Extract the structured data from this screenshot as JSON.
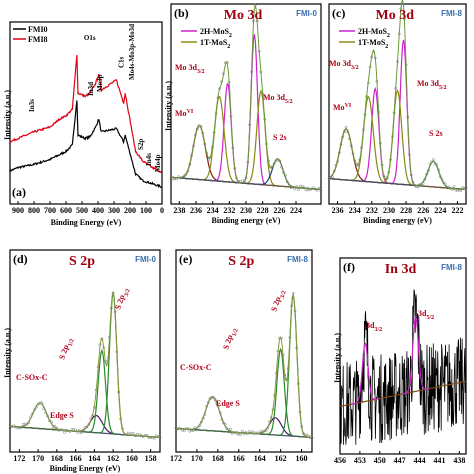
{
  "chart_data": [
    {
      "id": "a",
      "type": "line",
      "panel_label": "(a)",
      "xlabel": "Binding Energy (eV)",
      "ylabel": "Intensity (a.u.)",
      "xlim": [
        950,
        0
      ],
      "ticks": [
        "900",
        "800",
        "700",
        "600",
        "500",
        "400",
        "300",
        "200",
        "100",
        "0"
      ],
      "legend": [
        "FMI0",
        "FMI8"
      ],
      "series": [
        {
          "name": "FMI0",
          "color": "#000000",
          "points": [
            [
              950,
              0.18
            ],
            [
              900,
              0.2
            ],
            [
              800,
              0.22
            ],
            [
              700,
              0.25
            ],
            [
              640,
              0.28
            ],
            [
              600,
              0.3
            ],
            [
              560,
              0.34
            ],
            [
              532,
              0.62
            ],
            [
              525,
              0.4
            ],
            [
              480,
              0.38
            ],
            [
              450,
              0.39
            ],
            [
              415,
              0.45
            ],
            [
              395,
              0.5
            ],
            [
              380,
              0.42
            ],
            [
              285,
              0.44
            ],
            [
              240,
              0.36
            ],
            [
              230,
              0.4
            ],
            [
              165,
              0.16
            ],
            [
              120,
              0.12
            ],
            [
              60,
              0.1
            ],
            [
              0,
              0.08
            ]
          ]
        },
        {
          "name": "FMI8",
          "color": "#e00010",
          "points": [
            [
              950,
              0.36
            ],
            [
              900,
              0.38
            ],
            [
              800,
              0.42
            ],
            [
              700,
              0.45
            ],
            [
              640,
              0.5
            ],
            [
              600,
              0.52
            ],
            [
              560,
              0.56
            ],
            [
              532,
              0.9
            ],
            [
              525,
              0.66
            ],
            [
              480,
              0.64
            ],
            [
              450,
              0.66
            ],
            [
              415,
              0.72
            ],
            [
              395,
              0.78
            ],
            [
              380,
              0.68
            ],
            [
              285,
              0.74
            ],
            [
              240,
              0.6
            ],
            [
              230,
              0.66
            ],
            [
              165,
              0.3
            ],
            [
              120,
              0.24
            ],
            [
              60,
              0.2
            ],
            [
              0,
              0.17
            ]
          ]
        }
      ],
      "peaks": [
        {
          "label": "O1s",
          "x": 532
        },
        {
          "label": "In3d",
          "x": 445
        },
        {
          "label": "Mo3p",
          "x": 398
        },
        {
          "label": "In3s",
          "x": 828
        },
        {
          "label": "C1s",
          "x": 285
        },
        {
          "label": "Mo4s-Mo3p-Mo3d",
          "x": 232
        },
        {
          "label": "S2p",
          "x": 163
        },
        {
          "label": "In4s",
          "x": 120
        },
        {
          "label": "Mo4p",
          "x": 38
        }
      ]
    },
    {
      "id": "b",
      "type": "line",
      "panel_label": "(b)",
      "title": "Mo 3d",
      "tag": "FMI-0",
      "xlabel": "Binding energy (eV)",
      "ylabel": "Intensity (a.u.)",
      "xlim": [
        239,
        221
      ],
      "ticks": [
        "238",
        "236",
        "234",
        "232",
        "230",
        "228",
        "226",
        "224"
      ],
      "legend": [
        "2H-MoS2",
        "1T-MoS2"
      ],
      "annotations": [
        "Mo VI",
        "Mo 3d3/2",
        "Mo 3d5/2",
        "S 2s"
      ],
      "components": [
        {
          "name": "MoVI",
          "center": 235.6,
          "height": 0.32,
          "width": 1.0,
          "color": "#7a1a1a"
        },
        {
          "name": "2H-MoS2 3d3/2",
          "center": 232.2,
          "height": 0.58,
          "width": 0.6,
          "color": "#cc22cc"
        },
        {
          "name": "2H-MoS2 3d5/2",
          "center": 229.0,
          "height": 0.88,
          "width": 0.55,
          "color": "#cc22cc"
        },
        {
          "name": "1T-MoS2 3d3/2",
          "center": 233.2,
          "height": 0.5,
          "width": 0.8,
          "color": "#8a8a10"
        },
        {
          "name": "1T-MoS2 3d5/2",
          "center": 228.2,
          "height": 0.55,
          "width": 0.7,
          "color": "#8a8a10"
        },
        {
          "name": "S 2s",
          "center": 226.2,
          "height": 0.16,
          "width": 0.9,
          "color": "#1a3a7a"
        }
      ]
    },
    {
      "id": "c",
      "type": "line",
      "panel_label": "(c)",
      "title": "Mo 3d",
      "tag": "FMI-8",
      "xlabel": "Binding energy (eV)",
      "ylabel": "",
      "xlim": [
        237,
        221
      ],
      "ticks": [
        "236",
        "234",
        "232",
        "230",
        "228",
        "226",
        "224",
        "222"
      ],
      "legend": [
        "2H-MoS2",
        "1T-MoS2"
      ],
      "annotations": [
        "Mo VI",
        "Mo 3d3/2",
        "Mo 3d5/2",
        "S 2s"
      ],
      "components": [
        {
          "name": "MoVI",
          "center": 235.0,
          "height": 0.3,
          "width": 1.0,
          "color": "#7a1a1a"
        },
        {
          "name": "2H-MoS2 3d3/2",
          "center": 231.6,
          "height": 0.55,
          "width": 0.6,
          "color": "#cc22cc"
        },
        {
          "name": "2H-MoS2 3d5/2",
          "center": 228.3,
          "height": 0.85,
          "width": 0.55,
          "color": "#cc22cc"
        },
        {
          "name": "1T-MoS2 3d3/2",
          "center": 232.4,
          "height": 0.5,
          "width": 0.8,
          "color": "#8a8a10"
        },
        {
          "name": "1T-MoS2 3d5/2",
          "center": 229.0,
          "height": 0.55,
          "width": 0.7,
          "color": "#8a8a10"
        },
        {
          "name": "S 2s",
          "center": 224.8,
          "height": 0.15,
          "width": 0.9,
          "color": "#1a3a7a"
        }
      ]
    },
    {
      "id": "d",
      "type": "line",
      "panel_label": "(d)",
      "title": "S 2p",
      "tag": "FMI-0",
      "xlabel": "Binding Energy (eV)",
      "ylabel": "Intensity (a.u.)",
      "xlim": [
        173,
        157
      ],
      "ticks": [
        "172",
        "170",
        "168",
        "166",
        "164",
        "162",
        "160",
        "158"
      ],
      "annotations": [
        "C-SOx-C",
        "Edge S",
        "S 2p1/2",
        "S 2p3/2"
      ],
      "components": [
        {
          "name": "C-SOx-C",
          "center": 169.8,
          "height": 0.15,
          "width": 1.0,
          "color": "#1a6a9a"
        },
        {
          "name": "Edge S",
          "center": 163.8,
          "height": 0.1,
          "width": 0.9,
          "color": "#4a1a6a"
        },
        {
          "name": "S 2p1/2",
          "center": 163.2,
          "height": 0.48,
          "width": 0.55,
          "color": "#2a8a2a"
        },
        {
          "name": "S 2p3/2",
          "center": 162.0,
          "height": 0.82,
          "width": 0.55,
          "color": "#2a8a2a"
        }
      ]
    },
    {
      "id": "e",
      "type": "line",
      "panel_label": "(e)",
      "title": "S 2p",
      "tag": "FMI-8",
      "xlabel": "",
      "ylabel": "",
      "xlim": [
        172,
        159
      ],
      "ticks": [
        "172",
        "170",
        "168",
        "166",
        "164",
        "162",
        "160"
      ],
      "annotations": [
        "C-SOx-C",
        "Edge S",
        "S 2p1/2",
        "S 2p3/2"
      ],
      "components": [
        {
          "name": "C-SOx-C",
          "center": 168.5,
          "height": 0.2,
          "width": 0.9,
          "color": "#1a6a9a"
        },
        {
          "name": "Edge S",
          "center": 162.5,
          "height": 0.1,
          "width": 0.8,
          "color": "#4a1a6a"
        },
        {
          "name": "S 2p1/2",
          "center": 162.0,
          "height": 0.5,
          "width": 0.5,
          "color": "#2a8a2a"
        },
        {
          "name": "S 2p3/2",
          "center": 160.8,
          "height": 0.82,
          "width": 0.5,
          "color": "#2a8a2a"
        }
      ]
    },
    {
      "id": "f",
      "type": "line",
      "panel_label": "(f)",
      "title": "In 3d",
      "tag": "FMI-8",
      "xlabel": "",
      "ylabel": "Intensity (a.u.)",
      "xlim": [
        456,
        437
      ],
      "ticks": [
        "456",
        "453",
        "450",
        "447",
        "444",
        "441",
        "438"
      ],
      "annotations": [
        "3d3/2",
        "3d5/2"
      ],
      "components": [
        {
          "name": "3d3/2",
          "center": 452.2,
          "height": 0.35,
          "width": 0.6,
          "color": "#cc22cc"
        },
        {
          "name": "3d5/2",
          "center": 444.6,
          "height": 0.45,
          "width": 0.6,
          "color": "#cc22cc"
        }
      ]
    }
  ]
}
